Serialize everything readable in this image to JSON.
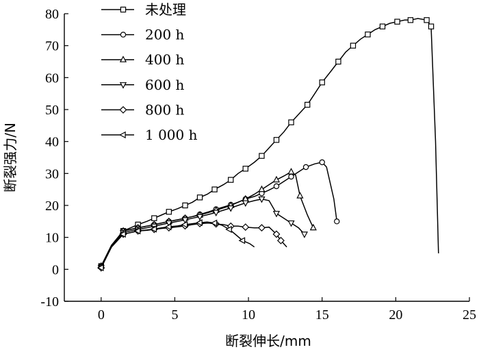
{
  "chart_data": {
    "type": "line",
    "xlabel": "断裂伸长/mm",
    "ylabel": "断裂强力/N",
    "xlim": [
      -2.5,
      25
    ],
    "ylim": [
      -10,
      80
    ],
    "x_ticks": [
      "0",
      "5",
      "10",
      "15",
      "20",
      "25"
    ],
    "y_ticks": [
      "-10",
      "0",
      "10",
      "20",
      "30",
      "40",
      "50",
      "60",
      "70",
      "80"
    ],
    "grid": false,
    "legend_position": "top-left",
    "series": [
      {
        "name": "未处理",
        "marker": "square",
        "points": [
          [
            0,
            1
          ],
          [
            0.7,
            7.5
          ],
          [
            1.5,
            12
          ],
          [
            2,
            13
          ],
          [
            2.5,
            14
          ],
          [
            3.1,
            15
          ],
          [
            3.6,
            16
          ],
          [
            4.1,
            17
          ],
          [
            4.6,
            18
          ],
          [
            5.2,
            19
          ],
          [
            5.7,
            20
          ],
          [
            6.2,
            21
          ],
          [
            6.7,
            22.5
          ],
          [
            7.2,
            23.5
          ],
          [
            7.7,
            25
          ],
          [
            8.3,
            26.5
          ],
          [
            8.8,
            28
          ],
          [
            9.3,
            30
          ],
          [
            9.8,
            31.5
          ],
          [
            10.4,
            33.5
          ],
          [
            10.9,
            35.5
          ],
          [
            11.4,
            38
          ],
          [
            11.9,
            40.5
          ],
          [
            12.4,
            43
          ],
          [
            12.9,
            46
          ],
          [
            13.4,
            48.5
          ],
          [
            14,
            51.5
          ],
          [
            14.5,
            55
          ],
          [
            15,
            58.5
          ],
          [
            15.6,
            62
          ],
          [
            16.1,
            65
          ],
          [
            16.6,
            68
          ],
          [
            17.1,
            70
          ],
          [
            17.6,
            72
          ],
          [
            18.1,
            73.5
          ],
          [
            18.6,
            75
          ],
          [
            19.1,
            76
          ],
          [
            19.6,
            77
          ],
          [
            20.1,
            77.5
          ],
          [
            20.6,
            78
          ],
          [
            21,
            78
          ],
          [
            21.5,
            78.5
          ],
          [
            22.1,
            78
          ],
          [
            22.4,
            76
          ],
          [
            22.7,
            40
          ],
          [
            22.9,
            5
          ]
        ],
        "marker_index": [
          0,
          2,
          4,
          6,
          8,
          10,
          12,
          14,
          16,
          18,
          20,
          22,
          24,
          26,
          28,
          30,
          32,
          34,
          36,
          38,
          40,
          42,
          43
        ]
      },
      {
        "name": "200 h",
        "marker": "circle",
        "points": [
          [
            0,
            1
          ],
          [
            0.7,
            7
          ],
          [
            1.5,
            12
          ],
          [
            2,
            12.5
          ],
          [
            2.5,
            13
          ],
          [
            3.1,
            13.5
          ],
          [
            3.6,
            14
          ],
          [
            4.1,
            14.5
          ],
          [
            4.6,
            15
          ],
          [
            5.2,
            15.5
          ],
          [
            5.7,
            16
          ],
          [
            6.2,
            16.5
          ],
          [
            6.7,
            17.2
          ],
          [
            7.3,
            18
          ],
          [
            7.8,
            18.8
          ],
          [
            8.3,
            19.5
          ],
          [
            8.8,
            20.2
          ],
          [
            9.3,
            21
          ],
          [
            9.8,
            22
          ],
          [
            10.4,
            22.8
          ],
          [
            10.9,
            23.8
          ],
          [
            11.4,
            24.8
          ],
          [
            11.9,
            26
          ],
          [
            12.4,
            27.5
          ],
          [
            12.9,
            29
          ],
          [
            13.4,
            30.5
          ],
          [
            13.9,
            32
          ],
          [
            14.5,
            33
          ],
          [
            15,
            33.5
          ],
          [
            15.3,
            32
          ],
          [
            15.8,
            22
          ],
          [
            16,
            15
          ]
        ],
        "marker_index": [
          0,
          2,
          4,
          6,
          8,
          10,
          12,
          14,
          16,
          18,
          20,
          22,
          24,
          26,
          28,
          31
        ]
      },
      {
        "name": "400 h",
        "marker": "triangle-up",
        "points": [
          [
            0,
            1
          ],
          [
            0.7,
            7.5
          ],
          [
            1.5,
            12
          ],
          [
            2,
            12.5
          ],
          [
            2.5,
            13
          ],
          [
            3.1,
            13.5
          ],
          [
            3.6,
            14
          ],
          [
            4.1,
            14.5
          ],
          [
            4.6,
            15
          ],
          [
            5.2,
            15.5
          ],
          [
            5.7,
            16
          ],
          [
            6.2,
            16.5
          ],
          [
            6.7,
            17
          ],
          [
            7.3,
            17.8
          ],
          [
            7.8,
            18.5
          ],
          [
            8.3,
            19.2
          ],
          [
            8.8,
            20
          ],
          [
            9.3,
            21
          ],
          [
            9.8,
            22
          ],
          [
            10.4,
            23.5
          ],
          [
            10.9,
            25
          ],
          [
            11.4,
            26.5
          ],
          [
            11.9,
            28
          ],
          [
            12.4,
            29.2
          ],
          [
            12.9,
            30.5
          ],
          [
            13.2,
            29.5
          ],
          [
            13.5,
            23
          ],
          [
            14,
            17
          ],
          [
            14.4,
            13
          ]
        ],
        "marker_index": [
          0,
          2,
          4,
          6,
          8,
          10,
          12,
          14,
          16,
          18,
          20,
          22,
          24,
          26,
          28
        ]
      },
      {
        "name": "600 h",
        "marker": "triangle-down",
        "points": [
          [
            0,
            0.5
          ],
          [
            0.7,
            7
          ],
          [
            1.5,
            11.5
          ],
          [
            2,
            12
          ],
          [
            2.5,
            12.5
          ],
          [
            3.1,
            13
          ],
          [
            3.6,
            13.5
          ],
          [
            4.1,
            14
          ],
          [
            4.6,
            14.5
          ],
          [
            5.2,
            15
          ],
          [
            5.7,
            15.5
          ],
          [
            6.2,
            16
          ],
          [
            6.7,
            16.5
          ],
          [
            7.3,
            17.2
          ],
          [
            7.8,
            17.8
          ],
          [
            8.3,
            18.5
          ],
          [
            8.8,
            19.2
          ],
          [
            9.3,
            20
          ],
          [
            9.8,
            20.8
          ],
          [
            10.4,
            21.5
          ],
          [
            10.9,
            22
          ],
          [
            11.4,
            21.5
          ],
          [
            11.9,
            17.5
          ],
          [
            12.4,
            16
          ],
          [
            12.9,
            14.5
          ],
          [
            13.4,
            13
          ],
          [
            13.8,
            11
          ]
        ],
        "marker_index": [
          0,
          2,
          4,
          6,
          8,
          10,
          12,
          14,
          16,
          18,
          20,
          22,
          24,
          26
        ]
      },
      {
        "name": "800 h",
        "marker": "diamond",
        "points": [
          [
            0,
            0.5
          ],
          [
            0.7,
            7
          ],
          [
            1.5,
            11
          ],
          [
            2,
            11.5
          ],
          [
            2.5,
            12
          ],
          [
            3.1,
            12.2
          ],
          [
            3.6,
            12.5
          ],
          [
            4.1,
            12.8
          ],
          [
            4.6,
            13
          ],
          [
            5.2,
            13.3
          ],
          [
            5.7,
            13.6
          ],
          [
            6.2,
            14
          ],
          [
            6.7,
            14.3
          ],
          [
            7.3,
            14.5
          ],
          [
            7.8,
            14.2
          ],
          [
            8.3,
            14
          ],
          [
            8.8,
            13.5
          ],
          [
            9.3,
            13.5
          ],
          [
            9.8,
            13.2
          ],
          [
            10.4,
            13
          ],
          [
            10.9,
            13
          ],
          [
            11.4,
            13.2
          ],
          [
            11.9,
            11
          ],
          [
            12.2,
            9
          ],
          [
            12.6,
            7
          ]
        ],
        "marker_index": [
          0,
          2,
          4,
          6,
          8,
          10,
          12,
          14,
          16,
          18,
          20,
          22,
          23
        ]
      },
      {
        "name": "1 000 h",
        "marker": "triangle-left",
        "points": [
          [
            0,
            0.5
          ],
          [
            0.7,
            7
          ],
          [
            1.5,
            11
          ],
          [
            2,
            11.5
          ],
          [
            2.5,
            12
          ],
          [
            3.1,
            12.3
          ],
          [
            3.6,
            12.6
          ],
          [
            4.1,
            13
          ],
          [
            4.6,
            13.3
          ],
          [
            5.2,
            13.6
          ],
          [
            5.7,
            14
          ],
          [
            6.2,
            14.3
          ],
          [
            6.7,
            14.6
          ],
          [
            7.2,
            14.8
          ],
          [
            7.7,
            14.5
          ],
          [
            8.2,
            13.8
          ],
          [
            8.7,
            12.5
          ],
          [
            9.1,
            11
          ],
          [
            9.6,
            9
          ],
          [
            10.1,
            8
          ],
          [
            10.4,
            7
          ]
        ],
        "marker_index": [
          0,
          2,
          4,
          6,
          8,
          10,
          12,
          14,
          16,
          18
        ]
      }
    ]
  }
}
